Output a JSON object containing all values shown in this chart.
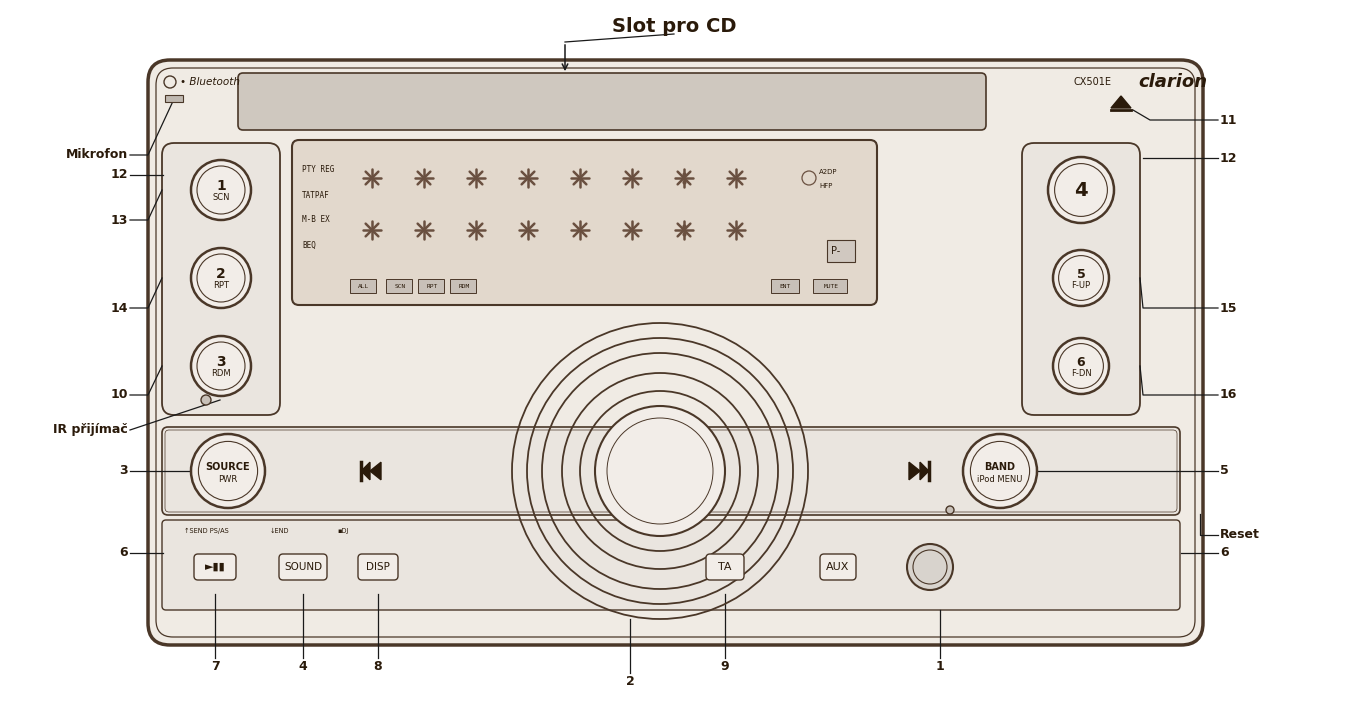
{
  "bg_color": "#ffffff",
  "outline_color": "#4a3728",
  "text_color": "#2a1a0a",
  "face_color": "#f2ede8",
  "panel_color": "#eae5df",
  "display_color": "#e2d8cc",
  "seg_color": "#6a5040",
  "title_text": "Slot pro CD",
  "bluetooth_label": "• Bluetooth",
  "model_label": "CX501E",
  "brand_label": "clarion",
  "display_left_labels": [
    "PTY REG",
    "TATPAF",
    "M-B EX",
    "BEQ"
  ],
  "display_bottom_labels": [
    "ALL",
    "SCN",
    "RPT",
    "RDM"
  ],
  "send_label": "↑SEND PS/AS",
  "end_label": "↓END",
  "adj_label": "▪DJ"
}
